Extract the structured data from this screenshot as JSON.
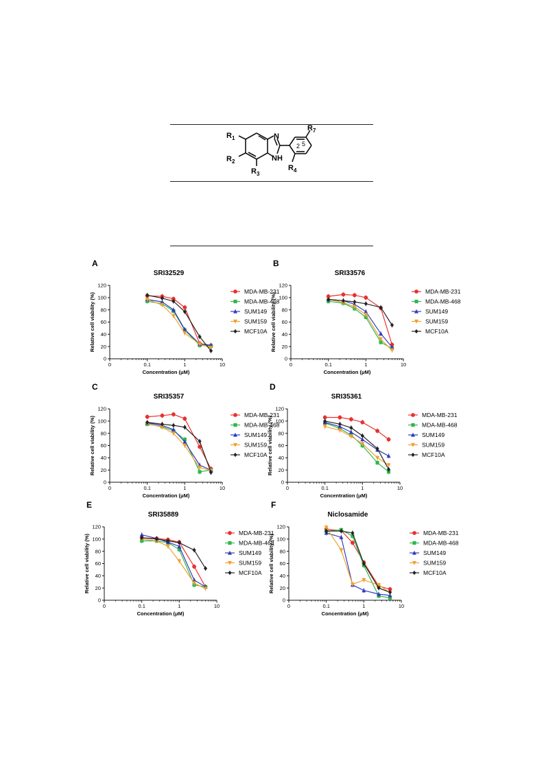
{
  "structure": {
    "labels": {
      "r1": "R",
      "r1_sub": "1",
      "r2": "R",
      "r2_sub": "2",
      "r3": "R",
      "r3_sub": "3",
      "r4": "R",
      "r4_sub": "4",
      "r7": "R",
      "r7_sub": "7",
      "n_ring": "N",
      "nh": "N",
      "h": "H",
      "pos2": "2",
      "pos5": "5"
    }
  },
  "chart_data": [
    {
      "type": "line",
      "letter": "A",
      "title": "SRI32529",
      "xlabel": "Concentration (μM)",
      "ylabel": "Relative cell viability (%)",
      "xscale": "log",
      "xlim": [
        0.01,
        10
      ],
      "ylim": [
        0,
        120
      ],
      "xticks": [
        {
          "v": 0.01,
          "label": "0"
        },
        {
          "v": 0.1,
          "label": "0.1"
        },
        {
          "v": 1,
          "label": "1"
        },
        {
          "v": 10,
          "label": "10"
        }
      ],
      "yticks": [
        0,
        20,
        40,
        60,
        80,
        100,
        120
      ],
      "legend": "right",
      "series": [
        {
          "name": "MDA-MB-231",
          "color": "#e8312f",
          "marker": "circle",
          "x": [
            0.1,
            0.25,
            0.5,
            1,
            2.5,
            5
          ],
          "y": [
            103,
            102,
            98,
            84,
            25,
            22
          ]
        },
        {
          "name": "MDA-MB-468",
          "color": "#2fb84a",
          "marker": "square",
          "x": [
            0.1,
            0.25,
            0.5,
            1,
            2.5,
            5
          ],
          "y": [
            94,
            90,
            78,
            47,
            22,
            21
          ]
        },
        {
          "name": "SUM149",
          "color": "#2f3bbf",
          "marker": "triangle",
          "x": [
            0.1,
            0.25,
            0.5,
            1,
            2.5,
            5
          ],
          "y": [
            97,
            93,
            80,
            48,
            24,
            22
          ]
        },
        {
          "name": "SUM159",
          "color": "#f0a030",
          "marker": "triangle-down",
          "x": [
            0.1,
            0.25,
            0.5,
            1,
            2.5,
            5
          ],
          "y": [
            97,
            88,
            70,
            42,
            24,
            18
          ]
        },
        {
          "name": "MCF10A",
          "color": "#222222",
          "marker": "diamond",
          "x": [
            0.1,
            0.25,
            0.5,
            1,
            2.5,
            5
          ],
          "y": [
            104,
            99,
            94,
            77,
            36,
            13
          ]
        }
      ]
    },
    {
      "type": "line",
      "letter": "B",
      "title": "SRI33576",
      "xlabel": "Concentration (μM)",
      "ylabel": "Relative cell viability (%)",
      "xscale": "log",
      "xlim": [
        0.01,
        10
      ],
      "ylim": [
        0,
        120
      ],
      "xticks": [
        {
          "v": 0.01,
          "label": "0"
        },
        {
          "v": 0.1,
          "label": "0.1"
        },
        {
          "v": 1,
          "label": "1"
        },
        {
          "v": 10,
          "label": "10"
        }
      ],
      "yticks": [
        0,
        20,
        40,
        60,
        80,
        100,
        120
      ],
      "legend": "right",
      "series": [
        {
          "name": "MDA-MB-231",
          "color": "#e8312f",
          "marker": "circle",
          "x": [
            0.1,
            0.25,
            0.5,
            1,
            2.5,
            5
          ],
          "y": [
            102,
            105,
            104,
            100,
            83,
            23
          ]
        },
        {
          "name": "MDA-MB-468",
          "color": "#2fb84a",
          "marker": "square",
          "x": [
            0.1,
            0.25,
            0.5,
            1,
            2.5,
            5
          ],
          "y": [
            94,
            91,
            82,
            68,
            27,
            17
          ]
        },
        {
          "name": "SUM149",
          "color": "#2f3bbf",
          "marker": "triangle",
          "x": [
            0.1,
            0.25,
            0.5,
            1,
            2.5,
            5
          ],
          "y": [
            97,
            95,
            89,
            77,
            41,
            19
          ]
        },
        {
          "name": "SUM159",
          "color": "#f0a030",
          "marker": "triangle-down",
          "x": [
            0.1,
            0.25,
            0.5,
            1,
            2.5,
            5
          ],
          "y": [
            97,
            92,
            85,
            72,
            32,
            14
          ]
        },
        {
          "name": "MCF10A",
          "color": "#222222",
          "marker": "diamond",
          "x": [
            0.1,
            0.25,
            0.5,
            1,
            2.5,
            5
          ],
          "y": [
            97,
            95,
            93,
            90,
            84,
            55
          ]
        }
      ]
    },
    {
      "type": "line",
      "letter": "C",
      "title": "SRI35357",
      "xlabel": "Concentration (μM)",
      "ylabel": "Relative cell viability (%)",
      "xscale": "log",
      "xlim": [
        0.01,
        10
      ],
      "ylim": [
        0,
        120
      ],
      "xticks": [
        {
          "v": 0.01,
          "label": "0"
        },
        {
          "v": 0.1,
          "label": "0.1"
        },
        {
          "v": 1,
          "label": "1"
        },
        {
          "v": 10,
          "label": "10"
        }
      ],
      "yticks": [
        0,
        20,
        40,
        60,
        80,
        100,
        120
      ],
      "legend": "right",
      "series": [
        {
          "name": "MDA-MB-231",
          "color": "#e8312f",
          "marker": "circle",
          "x": [
            0.1,
            0.25,
            0.5,
            1,
            2.5,
            5
          ],
          "y": [
            107,
            109,
            111,
            104,
            58,
            22
          ]
        },
        {
          "name": "MDA-MB-468",
          "color": "#2fb84a",
          "marker": "square",
          "x": [
            0.1,
            0.25,
            0.5,
            1,
            2.5,
            5
          ],
          "y": [
            95,
            91,
            84,
            70,
            17,
            20
          ]
        },
        {
          "name": "SUM149",
          "color": "#2f3bbf",
          "marker": "triangle",
          "x": [
            0.1,
            0.25,
            0.5,
            1,
            2.5,
            5
          ],
          "y": [
            97,
            93,
            86,
            66,
            28,
            20
          ]
        },
        {
          "name": "SUM159",
          "color": "#f0a030",
          "marker": "triangle-down",
          "x": [
            0.1,
            0.25,
            0.5,
            1,
            2.5,
            5
          ],
          "y": [
            96,
            90,
            80,
            60,
            24,
            19
          ]
        },
        {
          "name": "MCF10A",
          "color": "#222222",
          "marker": "diamond",
          "x": [
            0.1,
            0.25,
            0.5,
            1,
            2.5,
            5
          ],
          "y": [
            98,
            95,
            93,
            90,
            67,
            16
          ]
        }
      ]
    },
    {
      "type": "line",
      "letter": "D",
      "title": "SRI35361",
      "xlabel": "Concentration (μM)",
      "ylabel": "Relative cell viability (%)",
      "xscale": "log",
      "xlim": [
        0.01,
        10
      ],
      "ylim": [
        0,
        120
      ],
      "xticks": [
        {
          "v": 0.01,
          "label": "0"
        },
        {
          "v": 0.1,
          "label": "0.1"
        },
        {
          "v": 1,
          "label": "1"
        },
        {
          "v": 10,
          "label": "10"
        }
      ],
      "yticks": [
        0,
        20,
        40,
        60,
        80,
        100,
        120
      ],
      "legend": "right",
      "series": [
        {
          "name": "MDA-MB-231",
          "color": "#e8312f",
          "marker": "circle",
          "x": [
            0.1,
            0.25,
            0.5,
            1,
            2.5,
            5
          ],
          "y": [
            106,
            106,
            103,
            98,
            84,
            70
          ]
        },
        {
          "name": "MDA-MB-468",
          "color": "#2fb84a",
          "marker": "square",
          "x": [
            0.1,
            0.25,
            0.5,
            1,
            2.5,
            5
          ],
          "y": [
            97,
            88,
            77,
            60,
            32,
            17
          ]
        },
        {
          "name": "SUM149",
          "color": "#2f3bbf",
          "marker": "triangle",
          "x": [
            0.1,
            0.25,
            0.5,
            1,
            2.5,
            5
          ],
          "y": [
            98,
            91,
            82,
            70,
            53,
            43
          ]
        },
        {
          "name": "SUM159",
          "color": "#f0a030",
          "marker": "triangle-down",
          "x": [
            0.1,
            0.25,
            0.5,
            1,
            2.5,
            5
          ],
          "y": [
            91,
            85,
            75,
            63,
            40,
            28
          ]
        },
        {
          "name": "MCF10A",
          "color": "#222222",
          "marker": "diamond",
          "x": [
            0.1,
            0.25,
            0.5,
            1,
            2.5,
            5
          ],
          "y": [
            100,
            95,
            89,
            76,
            55,
            21
          ]
        }
      ]
    },
    {
      "type": "line",
      "letter": "E",
      "title": "SRI35889",
      "xlabel": "Concentration (μM)",
      "ylabel": "Relative cell viability (%)",
      "xscale": "log",
      "xlim": [
        0.01,
        10
      ],
      "ylim": [
        0,
        120
      ],
      "xticks": [
        {
          "v": 0.01,
          "label": "0"
        },
        {
          "v": 0.1,
          "label": "0.1"
        },
        {
          "v": 1,
          "label": "1"
        },
        {
          "v": 10,
          "label": "10"
        }
      ],
      "yticks": [
        0,
        20,
        40,
        60,
        80,
        100,
        120
      ],
      "legend": "right",
      "series": [
        {
          "name": "MDA-MB-231",
          "color": "#e8312f",
          "marker": "circle",
          "x": [
            0.1,
            0.25,
            0.5,
            1,
            2.5,
            5
          ],
          "y": [
            102,
            101,
            99,
            95,
            55,
            22
          ]
        },
        {
          "name": "MDA-MB-468",
          "color": "#2fb84a",
          "marker": "square",
          "x": [
            0.1,
            0.25,
            0.5,
            1,
            2.5,
            5
          ],
          "y": [
            97,
            97,
            94,
            83,
            25,
            22
          ]
        },
        {
          "name": "SUM149",
          "color": "#2f3bbf",
          "marker": "triangle",
          "x": [
            0.1,
            0.25,
            0.5,
            1,
            2.5,
            5
          ],
          "y": [
            107,
            101,
            95,
            88,
            33,
            22
          ]
        },
        {
          "name": "SUM159",
          "color": "#f0a030",
          "marker": "triangle-down",
          "x": [
            0.1,
            0.25,
            0.5,
            1,
            2.5,
            5
          ],
          "y": [
            100,
            97,
            88,
            64,
            28,
            19
          ]
        },
        {
          "name": "MCF10A",
          "color": "#222222",
          "marker": "diamond",
          "x": [
            0.1,
            0.25,
            0.5,
            1,
            2.5,
            5
          ],
          "y": [
            102,
            100,
            97,
            94,
            82,
            52
          ]
        }
      ]
    },
    {
      "type": "line",
      "letter": "F",
      "title": "Niclosamide",
      "xlabel": "Concentration (μM)",
      "ylabel": "Relative cell viability (%)",
      "xscale": "log",
      "xlim": [
        0.01,
        10
      ],
      "ylim": [
        0,
        120
      ],
      "xticks": [
        {
          "v": 0.01,
          "label": "0"
        },
        {
          "v": 0.1,
          "label": "0.1"
        },
        {
          "v": 1,
          "label": "1"
        },
        {
          "v": 10,
          "label": "10"
        }
      ],
      "yticks": [
        0,
        20,
        40,
        60,
        80,
        100,
        120
      ],
      "legend": "right",
      "series": [
        {
          "name": "MDA-MB-231",
          "color": "#e8312f",
          "marker": "circle",
          "x": [
            0.1,
            0.25,
            0.5,
            1,
            2.5,
            5
          ],
          "y": [
            116,
            114,
            94,
            62,
            23,
            18
          ]
        },
        {
          "name": "MDA-MB-468",
          "color": "#2fb84a",
          "marker": "square",
          "x": [
            0.1,
            0.25,
            0.5,
            1,
            2.5,
            5
          ],
          "y": [
            113,
            115,
            105,
            57,
            7,
            4
          ]
        },
        {
          "name": "SUM149",
          "color": "#2f3bbf",
          "marker": "triangle",
          "x": [
            0.1,
            0.25,
            0.5,
            1,
            2.5,
            5
          ],
          "y": [
            110,
            103,
            25,
            16,
            10,
            8
          ]
        },
        {
          "name": "SUM159",
          "color": "#f0a030",
          "marker": "triangle-down",
          "x": [
            0.1,
            0.25,
            0.5,
            1,
            2.5,
            5
          ],
          "y": [
            119,
            82,
            26,
            33,
            25,
            12
          ]
        },
        {
          "name": "MCF10A",
          "color": "#222222",
          "marker": "diamond",
          "x": [
            0.1,
            0.25,
            0.5,
            1,
            2.5,
            5
          ],
          "y": [
            113,
            113,
            110,
            60,
            20,
            13
          ]
        }
      ]
    }
  ]
}
